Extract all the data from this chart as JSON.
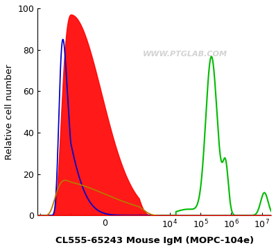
{
  "title": "",
  "xlabel": "CL555-65243 Mouse IgM (MOPC-104e)",
  "ylabel": "Relative cell number",
  "watermark": "WWW.PTGLAB.COM",
  "ylim": [
    0,
    100
  ],
  "yticks": [
    0,
    20,
    40,
    60,
    80,
    100
  ],
  "background_color": "#ffffff",
  "plot_bg_color": "#ffffff",
  "red_fill_color": "#ff0000",
  "red_fill_alpha": 0.9,
  "blue_line_color": "#0000cc",
  "orange_line_color": "#b87800",
  "green_line_color": "#00bb00",
  "linthresh": 1000,
  "xlim_min": -12000,
  "xlim_max": 20000000.0,
  "blue_peak_x": -1800,
  "blue_peak_amp": 85,
  "blue_peak_sigma": 600,
  "red_peak_x": -1000,
  "red_peak_amp": 97,
  "red_peak_sigma": 900,
  "orange_peak_x": -1500,
  "orange_peak_amp": 17,
  "orange_peak_sigma": 1500,
  "green_peak1_x_log": 5.35,
  "green_peak1_amp": 75,
  "green_peak1_sigma_log": 0.18,
  "green_peak2_x_log": 5.82,
  "green_peak2_amp": 22,
  "green_peak2_sigma_log": 0.09,
  "green_peak3_x_log": 5.62,
  "green_peak3_amp": 6,
  "green_peak3_sigma_log": 0.15,
  "green_peak4_x_log": 7.08,
  "green_peak4_amp": 11,
  "green_peak4_sigma_log": 0.12,
  "green_base_log_start": 4.2,
  "green_base_amp": 3
}
